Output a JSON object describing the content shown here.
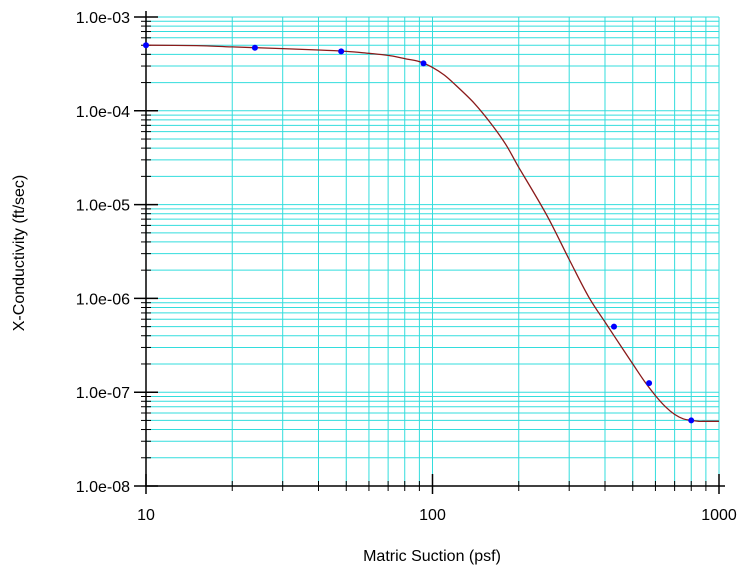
{
  "chart_data": {
    "type": "line",
    "xlabel": "Matric Suction (psf)",
    "ylabel": "X-Conductivity (ft/sec)",
    "x_scale": "log",
    "y_scale": "log",
    "xlim": [
      10,
      1000
    ],
    "ylim": [
      1e-08,
      0.001
    ],
    "x_ticks": [
      {
        "value": 10,
        "label": "10"
      },
      {
        "value": 100,
        "label": "100"
      },
      {
        "value": 1000,
        "label": "1000"
      }
    ],
    "y_ticks": [
      {
        "value": 1e-08,
        "label": "1.0e-08"
      },
      {
        "value": 1e-07,
        "label": "1.0e-07"
      },
      {
        "value": 1e-06,
        "label": "1.0e-06"
      },
      {
        "value": 1e-05,
        "label": "1.0e-05"
      },
      {
        "value": 0.0001,
        "label": "1.0e-04"
      },
      {
        "value": 0.001,
        "label": "1.0e-03"
      }
    ],
    "grid": true,
    "colors": {
      "grid": "#33dddd",
      "axis": "#000000",
      "curve": "#8b1a1a",
      "points": "#0000ff"
    },
    "series": [
      {
        "kind": "curve",
        "x": [
          10,
          15,
          20,
          30,
          40,
          50,
          60,
          70,
          80,
          90,
          100,
          110,
          120,
          140,
          160,
          180,
          200,
          250,
          300,
          350,
          400,
          430,
          500,
          550,
          600,
          650,
          700,
          750,
          800,
          850,
          900,
          1000
        ],
        "y": [
          0.0005,
          0.000495,
          0.00048,
          0.00046,
          0.000445,
          0.00043,
          0.00041,
          0.00039,
          0.00036,
          0.000335,
          0.00029,
          0.00024,
          0.00019,
          0.00012,
          7.3e-05,
          4.4e-05,
          2.5e-05,
          7.8e-06,
          2.6e-06,
          1.05e-06,
          5.6e-07,
          4e-07,
          2e-07,
          1.3e-07,
          9.2e-08,
          7e-08,
          5.8e-08,
          5.2e-08,
          5e-08,
          4.9e-08,
          4.9e-08,
          4.9e-08
        ]
      },
      {
        "kind": "points",
        "x": [
          10,
          24,
          48,
          93,
          430,
          570,
          800
        ],
        "y": [
          0.0005,
          0.00047,
          0.00043,
          0.00032,
          5e-07,
          1.25e-07,
          5e-08
        ]
      }
    ]
  }
}
